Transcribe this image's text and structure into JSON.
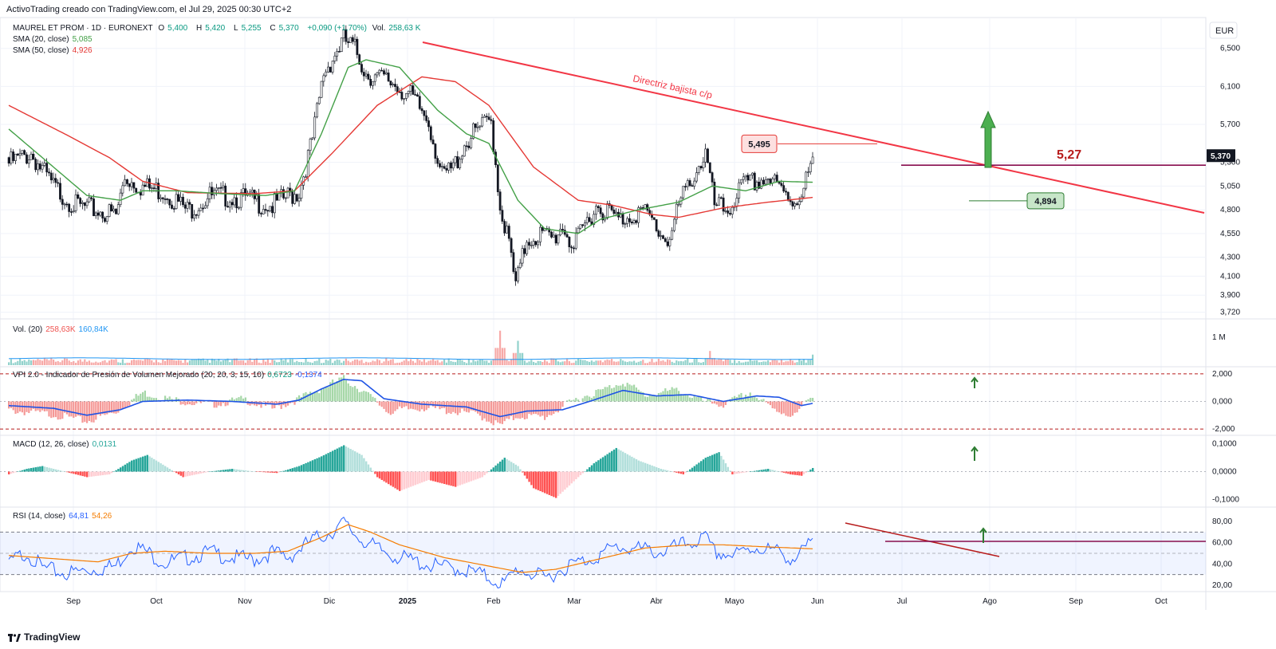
{
  "header": "ActivoTrading creado con TradingView.com, el Jul 29, 2025 00:30 UTC+2",
  "footer_brand": "TradingView",
  "currency": "EUR",
  "colors": {
    "up": "#26a69a",
    "down": "#ef5350",
    "sma20": "#43a047",
    "sma50": "#e53935",
    "trend": "#f23645",
    "grid": "#f0f3fa",
    "axis": "#e0e3eb"
  },
  "legend": {
    "symbol_line": "MAUREL ET PROM · 1D · EURONEXT",
    "o_label": "O",
    "o": "5,400",
    "h_label": "H",
    "h": "5,420",
    "l_label": "L",
    "l": "5,255",
    "c_label": "C",
    "c": "5,370",
    "change": "+0,090 (+1,70%)",
    "vol_label": "Vol.",
    "vol": "258,63 K",
    "sma20_label": "SMA (20, close)",
    "sma20": "5,085",
    "sma50_label": "SMA (50, close)",
    "sma50": "4,926",
    "volume_label": "Vol. (20)",
    "volume_v1": "258,63K",
    "volume_v2": "160,84K",
    "vpi_label": "VPI 2.0 - Indicador de Presión de Volumen Mejorado (20, 20, 3, 15, 10)",
    "vpi_v1": "0,6723",
    "vpi_v2": "-0,1374",
    "macd_label": "MACD (12, 26, close)",
    "macd_v1": "0,0131",
    "rsi_label": "RSI (14, close)",
    "rsi_v1": "64,81",
    "rsi_v2": "54,26"
  },
  "annotations": {
    "trendline_label": "Directriz bajista c/p",
    "high_box": "5,495",
    "support_box": "4,894",
    "resistance_label": "5,27",
    "last_price": "5,370"
  },
  "chart_data": [
    {
      "type": "candlestick",
      "pane": "price",
      "y_ticks": [
        "6,500",
        "6,100",
        "5,700",
        "5,300",
        "5,050",
        "4,800",
        "4,550",
        "4,300",
        "4,100",
        "3,900",
        "3,720"
      ],
      "y_tick_values": [
        6.5,
        6.1,
        5.7,
        5.3,
        5.05,
        4.8,
        4.55,
        4.3,
        4.1,
        3.9,
        3.72
      ],
      "x_ticks": [
        "Sep",
        "Oct",
        "Nov",
        "Dic",
        "2025",
        "Feb",
        "Mar",
        "Abr",
        "Mayo",
        "Jun",
        "Jul",
        "Ago",
        "Sep",
        "Oct"
      ],
      "close_keypoints": [
        [
          0,
          5.35
        ],
        [
          10,
          5.45
        ],
        [
          20,
          5.1
        ],
        [
          30,
          4.9
        ],
        [
          40,
          4.85
        ],
        [
          48,
          4.8
        ],
        [
          52,
          5.2
        ],
        [
          60,
          5.1
        ],
        [
          70,
          5.05
        ],
        [
          80,
          4.85
        ],
        [
          90,
          5.0
        ],
        [
          100,
          5.0
        ],
        [
          110,
          4.95
        ],
        [
          118,
          4.9
        ],
        [
          125,
          5.0
        ],
        [
          130,
          5.05
        ],
        [
          136,
          5.6
        ],
        [
          141,
          6.3
        ],
        [
          146,
          6.5
        ],
        [
          150,
          6.65
        ],
        [
          155,
          6.55
        ],
        [
          160,
          6.3
        ],
        [
          165,
          6.25
        ],
        [
          172,
          6.2
        ],
        [
          180,
          6.05
        ],
        [
          188,
          5.8
        ],
        [
          194,
          5.2
        ],
        [
          199,
          5.3
        ],
        [
          204,
          5.55
        ],
        [
          210,
          5.7
        ],
        [
          216,
          5.8
        ],
        [
          220,
          4.9
        ],
        [
          224,
          4.5
        ],
        [
          227,
          4.05
        ],
        [
          232,
          4.55
        ],
        [
          238,
          4.6
        ],
        [
          244,
          4.55
        ],
        [
          248,
          4.7
        ],
        [
          253,
          4.45
        ],
        [
          258,
          4.7
        ],
        [
          263,
          4.9
        ],
        [
          268,
          4.85
        ],
        [
          273,
          4.75
        ],
        [
          278,
          4.8
        ],
        [
          283,
          4.85
        ],
        [
          288,
          4.75
        ],
        [
          292,
          4.6
        ],
        [
          296,
          4.55
        ],
        [
          300,
          4.9
        ],
        [
          306,
          5.2
        ],
        [
          312,
          5.45
        ],
        [
          316,
          4.9
        ],
        [
          322,
          4.85
        ],
        [
          328,
          5.1
        ],
        [
          334,
          5.15
        ],
        [
          340,
          5.2
        ],
        [
          346,
          5.05
        ],
        [
          352,
          4.95
        ],
        [
          356,
          5.1
        ],
        [
          360,
          5.37
        ]
      ],
      "sma20_keypoints": [
        [
          0,
          5.65
        ],
        [
          20,
          5.25
        ],
        [
          35,
          4.95
        ],
        [
          50,
          4.9
        ],
        [
          60,
          5.0
        ],
        [
          75,
          5.0
        ],
        [
          95,
          4.97
        ],
        [
          115,
          4.95
        ],
        [
          128,
          5.0
        ],
        [
          140,
          5.6
        ],
        [
          152,
          6.3
        ],
        [
          160,
          6.38
        ],
        [
          175,
          6.3
        ],
        [
          192,
          5.85
        ],
        [
          205,
          5.6
        ],
        [
          215,
          5.5
        ],
        [
          228,
          4.9
        ],
        [
          240,
          4.6
        ],
        [
          255,
          4.55
        ],
        [
          265,
          4.7
        ],
        [
          282,
          4.8
        ],
        [
          300,
          4.88
        ],
        [
          315,
          5.05
        ],
        [
          330,
          5.0
        ],
        [
          345,
          5.1
        ],
        [
          360,
          5.09
        ]
      ],
      "sma50_keypoints": [
        [
          0,
          5.9
        ],
        [
          25,
          5.6
        ],
        [
          45,
          5.35
        ],
        [
          60,
          5.1
        ],
        [
          80,
          4.98
        ],
        [
          110,
          4.97
        ],
        [
          128,
          5.0
        ],
        [
          145,
          5.4
        ],
        [
          165,
          5.9
        ],
        [
          185,
          6.2
        ],
        [
          200,
          6.15
        ],
        [
          215,
          5.9
        ],
        [
          235,
          5.25
        ],
        [
          255,
          4.9
        ],
        [
          270,
          4.85
        ],
        [
          288,
          4.75
        ],
        [
          300,
          4.72
        ],
        [
          320,
          4.82
        ],
        [
          340,
          4.88
        ],
        [
          360,
          4.93
        ]
      ],
      "resistance_level": 5.27,
      "support_level": 4.894,
      "local_high": 5.495,
      "last_close": 5.37
    },
    {
      "type": "bar",
      "pane": "volume",
      "y_ticks": [
        "1 M"
      ],
      "y_tick_values": [
        1.0
      ],
      "spikes": [
        [
          220,
          0.85
        ],
        [
          228,
          0.6
        ],
        [
          314,
          0.35
        ],
        [
          360,
          0.26
        ]
      ],
      "avg": 0.16
    },
    {
      "type": "bar",
      "pane": "vpi",
      "y_ticks": [
        "2,000",
        "0,000",
        "-2,000"
      ],
      "y_tick_values": [
        2,
        0,
        -2
      ],
      "hist_keypoints": [
        [
          0,
          -0.5
        ],
        [
          20,
          -0.8
        ],
        [
          35,
          -1.3
        ],
        [
          48,
          -0.6
        ],
        [
          60,
          0.8
        ],
        [
          72,
          0.3
        ],
        [
          90,
          -0.1
        ],
        [
          105,
          0.3
        ],
        [
          118,
          -0.4
        ],
        [
          128,
          0.2
        ],
        [
          136,
          0.8
        ],
        [
          144,
          1.4
        ],
        [
          150,
          1.8
        ],
        [
          158,
          1.0
        ],
        [
          170,
          -0.6
        ],
        [
          185,
          -0.3
        ],
        [
          200,
          -0.6
        ],
        [
          210,
          -0.8
        ],
        [
          220,
          -1.6
        ],
        [
          228,
          -0.9
        ],
        [
          240,
          -1.0
        ],
        [
          255,
          0.4
        ],
        [
          265,
          0.9
        ],
        [
          275,
          1.6
        ],
        [
          285,
          0.6
        ],
        [
          300,
          1.0
        ],
        [
          310,
          0.2
        ],
        [
          320,
          -0.1
        ],
        [
          332,
          0.8
        ],
        [
          342,
          -0.4
        ],
        [
          352,
          -0.9
        ],
        [
          360,
          0.67
        ]
      ],
      "line_keypoints": [
        [
          0,
          -0.3
        ],
        [
          20,
          -0.5
        ],
        [
          35,
          -1.0
        ],
        [
          50,
          -0.6
        ],
        [
          60,
          0.0
        ],
        [
          80,
          0.1
        ],
        [
          100,
          0.0
        ],
        [
          120,
          -0.2
        ],
        [
          130,
          0.1
        ],
        [
          140,
          0.9
        ],
        [
          150,
          1.6
        ],
        [
          158,
          1.5
        ],
        [
          168,
          0.2
        ],
        [
          185,
          -0.2
        ],
        [
          205,
          -0.4
        ],
        [
          220,
          -1.1
        ],
        [
          232,
          -0.7
        ],
        [
          248,
          -0.6
        ],
        [
          260,
          0.0
        ],
        [
          275,
          0.8
        ],
        [
          290,
          0.4
        ],
        [
          305,
          0.5
        ],
        [
          320,
          0.0
        ],
        [
          335,
          0.4
        ],
        [
          345,
          0.3
        ],
        [
          355,
          -0.3
        ],
        [
          360,
          -0.14
        ]
      ]
    },
    {
      "type": "bar",
      "pane": "macd",
      "y_ticks": [
        "0,1000",
        "0,0000",
        "-0,1000"
      ],
      "y_tick_values": [
        0.1,
        0,
        -0.1
      ],
      "hist_keypoints": [
        [
          0,
          -0.01
        ],
        [
          8,
          0.01
        ],
        [
          15,
          0.02
        ],
        [
          25,
          0.0
        ],
        [
          35,
          -0.02
        ],
        [
          45,
          -0.01
        ],
        [
          55,
          0.04
        ],
        [
          62,
          0.06
        ],
        [
          68,
          0.03
        ],
        [
          78,
          -0.02
        ],
        [
          90,
          0.0
        ],
        [
          100,
          0.01
        ],
        [
          110,
          0.0
        ],
        [
          120,
          -0.005
        ],
        [
          130,
          0.02
        ],
        [
          140,
          0.055
        ],
        [
          150,
          0.095
        ],
        [
          158,
          0.06
        ],
        [
          165,
          -0.02
        ],
        [
          175,
          -0.07
        ],
        [
          188,
          -0.03
        ],
        [
          200,
          -0.055
        ],
        [
          212,
          -0.02
        ],
        [
          222,
          0.05
        ],
        [
          228,
          0.02
        ],
        [
          235,
          -0.06
        ],
        [
          245,
          -0.095
        ],
        [
          255,
          -0.02
        ],
        [
          262,
          0.03
        ],
        [
          272,
          0.085
        ],
        [
          282,
          0.04
        ],
        [
          292,
          0.01
        ],
        [
          302,
          -0.01
        ],
        [
          312,
          0.05
        ],
        [
          318,
          0.07
        ],
        [
          324,
          -0.01
        ],
        [
          332,
          0.0
        ],
        [
          340,
          0.01
        ],
        [
          350,
          -0.01
        ],
        [
          355,
          -0.015
        ],
        [
          360,
          0.013
        ]
      ]
    },
    {
      "type": "line",
      "pane": "rsi",
      "y_ticks": [
        "80,00",
        "60,00",
        "40,00",
        "20,00"
      ],
      "y_tick_values": [
        80,
        60,
        40,
        20
      ],
      "levels": [
        70,
        50,
        30
      ],
      "rsi_keypoints": [
        [
          0,
          45
        ],
        [
          8,
          55
        ],
        [
          15,
          40
        ],
        [
          25,
          35
        ],
        [
          35,
          38
        ],
        [
          48,
          42
        ],
        [
          55,
          62
        ],
        [
          62,
          55
        ],
        [
          70,
          45
        ],
        [
          80,
          50
        ],
        [
          90,
          55
        ],
        [
          100,
          50
        ],
        [
          110,
          48
        ],
        [
          118,
          55
        ],
        [
          125,
          50
        ],
        [
          135,
          65
        ],
        [
          145,
          75
        ],
        [
          150,
          82
        ],
        [
          156,
          70
        ],
        [
          165,
          58
        ],
        [
          175,
          50
        ],
        [
          190,
          42
        ],
        [
          200,
          40
        ],
        [
          210,
          35
        ],
        [
          222,
          25
        ],
        [
          228,
          40
        ],
        [
          240,
          30
        ],
        [
          250,
          42
        ],
        [
          262,
          50
        ],
        [
          272,
          60
        ],
        [
          282,
          58
        ],
        [
          292,
          55
        ],
        [
          302,
          62
        ],
        [
          312,
          68
        ],
        [
          316,
          55
        ],
        [
          325,
          52
        ],
        [
          335,
          60
        ],
        [
          345,
          55
        ],
        [
          352,
          48
        ],
        [
          360,
          64.81
        ]
      ],
      "signal_keypoints": [
        [
          0,
          48
        ],
        [
          20,
          45
        ],
        [
          40,
          42
        ],
        [
          55,
          50
        ],
        [
          70,
          52
        ],
        [
          90,
          50
        ],
        [
          110,
          50
        ],
        [
          125,
          52
        ],
        [
          140,
          65
        ],
        [
          152,
          77
        ],
        [
          162,
          70
        ],
        [
          175,
          58
        ],
        [
          195,
          46
        ],
        [
          215,
          38
        ],
        [
          230,
          32
        ],
        [
          245,
          35
        ],
        [
          265,
          45
        ],
        [
          285,
          55
        ],
        [
          305,
          58
        ],
        [
          320,
          58
        ],
        [
          340,
          56
        ],
        [
          360,
          54.26
        ]
      ]
    }
  ]
}
